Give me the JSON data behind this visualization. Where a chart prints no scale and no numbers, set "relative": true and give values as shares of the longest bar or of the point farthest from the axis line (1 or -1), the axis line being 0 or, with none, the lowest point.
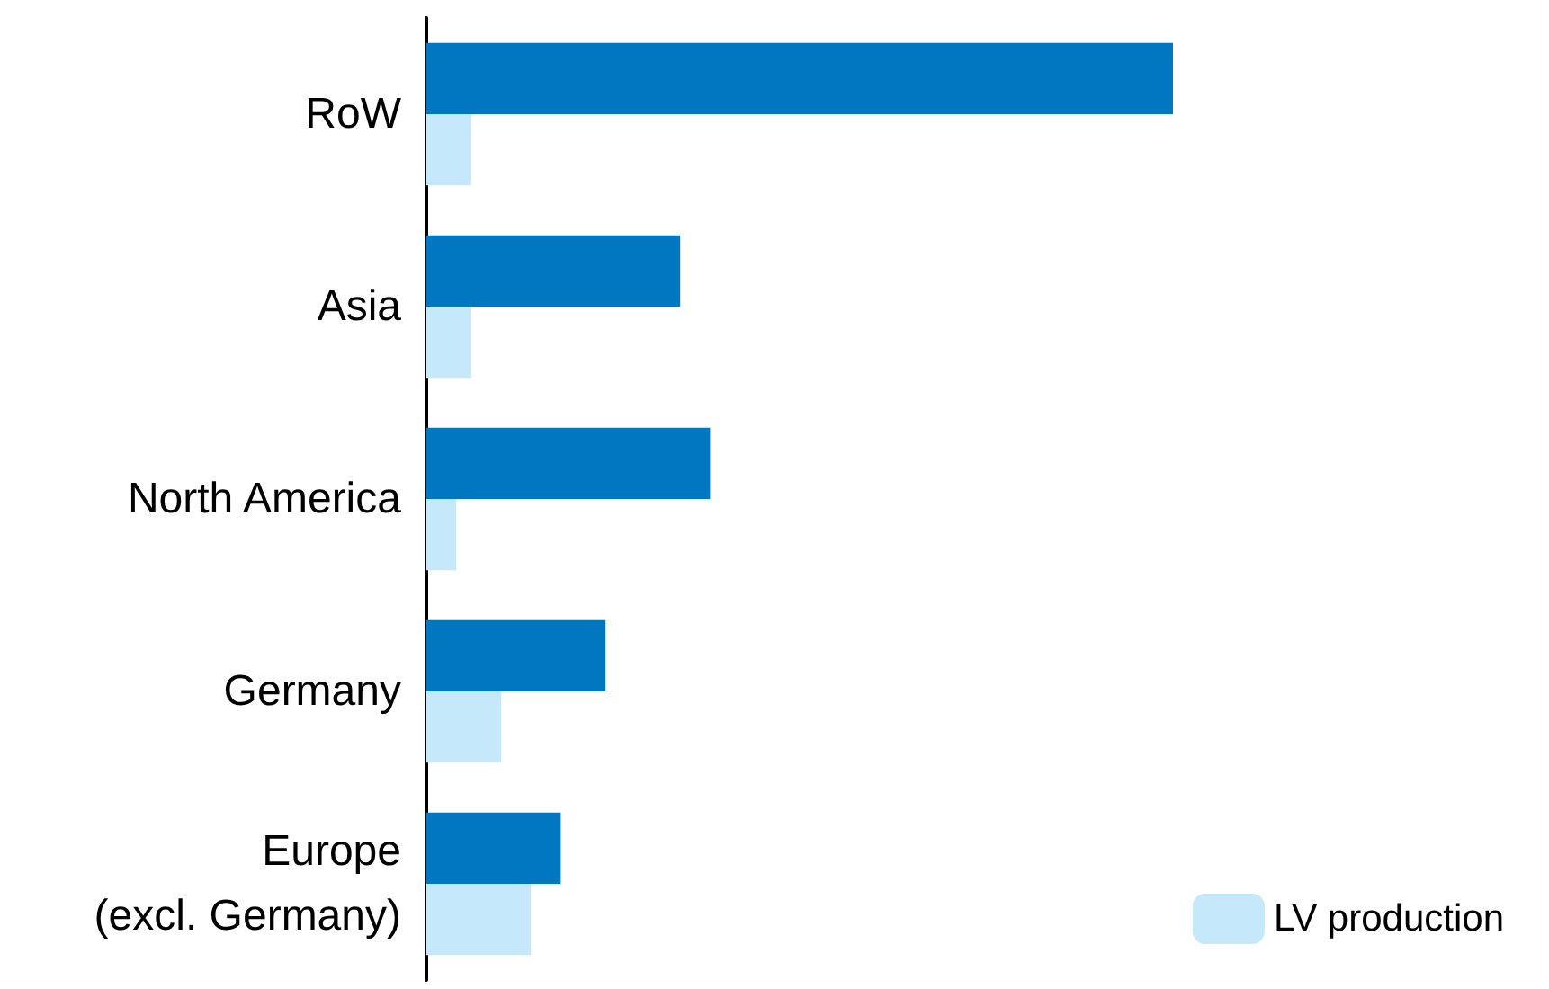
{
  "chart_data": {
    "type": "bar",
    "orientation": "horizontal",
    "relative": true,
    "categories": [
      "RoW",
      "Asia",
      "North America",
      "Germany",
      "Europe\n(excl. Germany)"
    ],
    "series": [
      {
        "color": "#0077c0",
        "values": [
          1,
          0.34,
          0.38,
          0.24,
          0.18
        ]
      },
      {
        "name": "LV production",
        "color": "#c5e8fb",
        "values": [
          0.06,
          0.06,
          0.04,
          0.1,
          0.14
        ]
      }
    ],
    "legend": "bottom right"
  }
}
